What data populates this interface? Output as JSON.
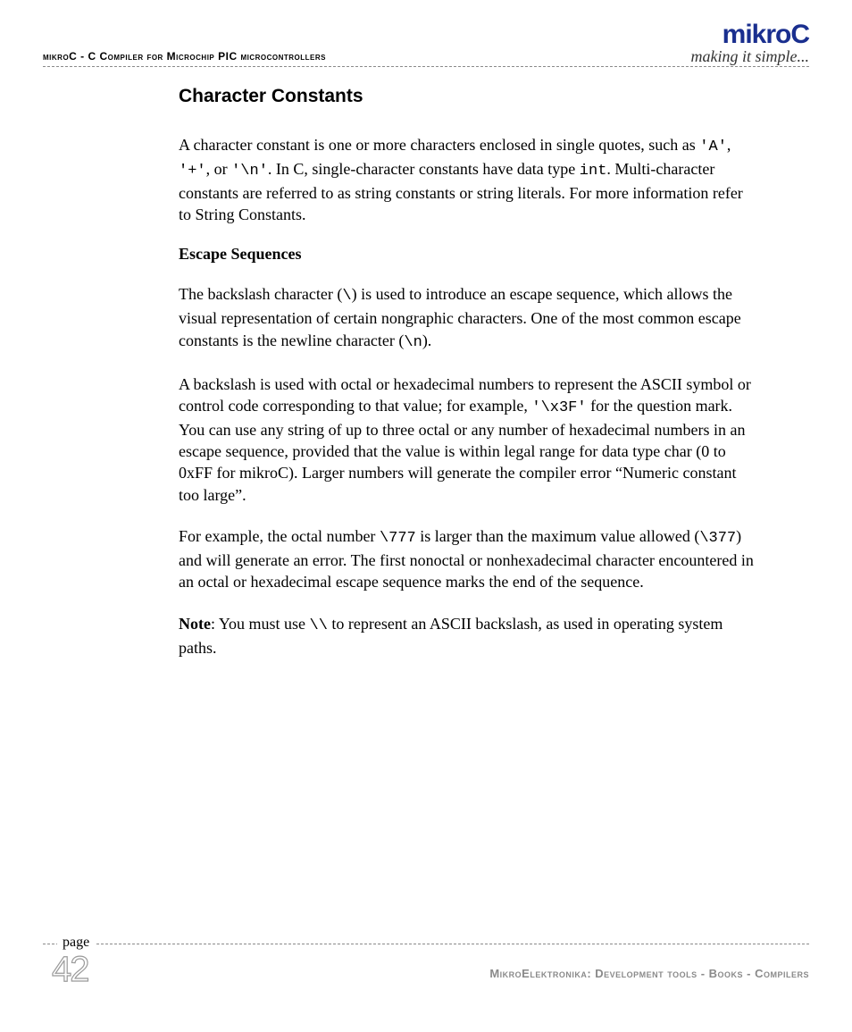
{
  "header": {
    "left_text": "mikroC - C Compiler for Microchip PIC microcontrollers",
    "logo_main": "mikroC",
    "logo_tag": "making it simple..."
  },
  "content": {
    "title": "Character Constants",
    "p1_a": "A character constant is one or more characters enclosed in single quotes, such as ",
    "p1_code1": "'A'",
    "p1_b": ", ",
    "p1_code2": "'+'",
    "p1_c": ", or ",
    "p1_code3": "'\\n'",
    "p1_d": ". In C, single-character constants have data type ",
    "p1_code4": "int",
    "p1_e": ". Multi-character constants are referred to as string constants or string literals. For more information refer to String Constants.",
    "subhead": "Escape Sequences",
    "p2_a": "The backslash character (",
    "p2_code1": "\\",
    "p2_b": ") is used to introduce an escape sequence, which allows the visual representation of certain nongraphic characters. One of the most common escape constants is the newline character (",
    "p2_code2": "\\n",
    "p2_c": ").",
    "p3_a": "A backslash is used with octal or hexadecimal numbers to represent the ASCII symbol or control code corresponding to that value; for example, ",
    "p3_code1": "'\\x3F'",
    "p3_b": " for the question mark. You can use any string of up to three octal or any number of hexadecimal numbers in an escape sequence, provided that the value is within legal range for data type char (0 to 0xFF for mikroC). Larger numbers will generate the compiler error “Numeric constant too large”.",
    "p4_a": "For example, the octal number ",
    "p4_code1": "\\777",
    "p4_b": " is larger than the maximum value allowed (",
    "p4_code2": "\\377",
    "p4_c": ") and will generate an error. The first nonoctal or nonhexadecimal character encountered in an octal or hexadecimal escape sequence marks the end of the sequence.",
    "note_label": "Note",
    "p5_a": ": You must use ",
    "p5_code1": "\\\\",
    "p5_b": " to represent an ASCII backslash, as used in operating system paths."
  },
  "footer": {
    "page_label": "page",
    "page_number": "42",
    "right_text": "MikroElektronika: Development tools - Books - Compilers"
  },
  "colors": {
    "logo": "#1a2f8f",
    "dash": "#8a8a8a",
    "footer_text": "#8a8a8a"
  }
}
